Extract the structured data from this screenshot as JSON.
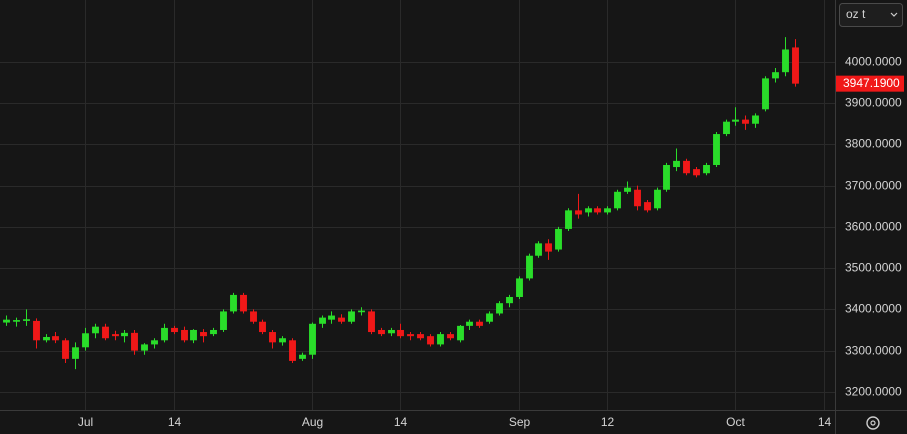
{
  "unit_selector": "oz t",
  "chart_data": {
    "type": "candlestick",
    "up_color": "#2add2a",
    "down_color": "#f01818",
    "grid": true,
    "xlim": [
      -0.63,
      84.1
    ],
    "xticks": [
      {
        "value": 8,
        "label": "Jul"
      },
      {
        "value": 17,
        "label": "14"
      },
      {
        "value": 31,
        "label": "Aug"
      },
      {
        "value": 40,
        "label": "14"
      },
      {
        "value": 52,
        "label": "Sep"
      },
      {
        "value": 61,
        "label": "12"
      },
      {
        "value": 74,
        "label": "Oct"
      },
      {
        "value": 83,
        "label": "14"
      }
    ],
    "ylim": [
      3156,
      4150
    ],
    "yticks": [
      {
        "value": 3200,
        "label": "3200.0000"
      },
      {
        "value": 3300,
        "label": "3300.0000"
      },
      {
        "value": 3400,
        "label": "3400.0000"
      },
      {
        "value": 3500,
        "label": "3500.0000"
      },
      {
        "value": 3600,
        "label": "3600.0000"
      },
      {
        "value": 3700,
        "label": "3700.0000"
      },
      {
        "value": 3800,
        "label": "3800.0000"
      },
      {
        "value": 3900,
        "label": "3900.0000"
      },
      {
        "value": 4000,
        "label": "4000.0000"
      }
    ],
    "last_price": {
      "value": 3947.19,
      "label": "3947.1900"
    },
    "open": [
      3368,
      3370,
      3372,
      3372,
      3325,
      3335,
      3325,
      3280,
      3308,
      3342,
      3358,
      3340,
      3335,
      3343,
      3300,
      3315,
      3325,
      3355,
      3350,
      3325,
      3345,
      3340,
      3350,
      3395,
      3435,
      3395,
      3370,
      3345,
      3320,
      3325,
      3280,
      3290,
      3365,
      3375,
      3380,
      3370,
      3393,
      3395,
      3350,
      3342,
      3350,
      3340,
      3340,
      3335,
      3315,
      3340,
      3325,
      3360,
      3370,
      3370,
      3390,
      3415,
      3430,
      3475,
      3530,
      3560,
      3545,
      3595,
      3640,
      3635,
      3645,
      3635,
      3645,
      3685,
      3690,
      3660,
      3645,
      3690,
      3745,
      3760,
      3740,
      3730,
      3750,
      3825,
      3855,
      3860,
      3850,
      3885,
      3960,
      3975,
      4035
    ],
    "high": [
      3385,
      3380,
      3400,
      3378,
      3340,
      3345,
      3330,
      3320,
      3355,
      3365,
      3365,
      3348,
      3350,
      3350,
      3318,
      3330,
      3365,
      3360,
      3358,
      3352,
      3352,
      3355,
      3400,
      3440,
      3440,
      3400,
      3375,
      3350,
      3335,
      3330,
      3295,
      3368,
      3385,
      3395,
      3388,
      3400,
      3405,
      3400,
      3355,
      3355,
      3365,
      3345,
      3345,
      3340,
      3345,
      3345,
      3362,
      3375,
      3375,
      3395,
      3420,
      3435,
      3480,
      3535,
      3565,
      3570,
      3600,
      3645,
      3680,
      3650,
      3650,
      3650,
      3690,
      3710,
      3700,
      3665,
      3695,
      3755,
      3790,
      3765,
      3745,
      3755,
      3830,
      3860,
      3890,
      3870,
      3875,
      3965,
      3985,
      4060,
      4055
    ],
    "low": [
      3360,
      3358,
      3360,
      3305,
      3320,
      3318,
      3270,
      3255,
      3300,
      3330,
      3325,
      3325,
      3320,
      3290,
      3290,
      3305,
      3320,
      3340,
      3320,
      3318,
      3320,
      3335,
      3345,
      3390,
      3390,
      3365,
      3340,
      3305,
      3312,
      3270,
      3275,
      3280,
      3355,
      3365,
      3365,
      3365,
      3385,
      3340,
      3335,
      3335,
      3330,
      3325,
      3325,
      3310,
      3310,
      3325,
      3320,
      3350,
      3355,
      3365,
      3385,
      3405,
      3425,
      3470,
      3525,
      3520,
      3540,
      3590,
      3620,
      3625,
      3630,
      3630,
      3640,
      3680,
      3640,
      3635,
      3640,
      3685,
      3735,
      3725,
      3720,
      3725,
      3745,
      3820,
      3845,
      3835,
      3840,
      3880,
      3950,
      3965,
      3940
    ],
    "close": [
      3375,
      3374,
      3376,
      3325,
      3333,
      3325,
      3280,
      3308,
      3342,
      3358,
      3330,
      3335,
      3343,
      3300,
      3315,
      3325,
      3355,
      3345,
      3325,
      3350,
      3335,
      3350,
      3395,
      3435,
      3395,
      3370,
      3345,
      3320,
      3330,
      3275,
      3290,
      3365,
      3380,
      3385,
      3370,
      3395,
      3397,
      3345,
      3340,
      3350,
      3335,
      3335,
      3330,
      3315,
      3340,
      3330,
      3360,
      3370,
      3360,
      3390,
      3415,
      3430,
      3475,
      3530,
      3560,
      3540,
      3595,
      3640,
      3630,
      3645,
      3635,
      3645,
      3685,
      3695,
      3650,
      3640,
      3690,
      3750,
      3760,
      3730,
      3725,
      3750,
      3825,
      3855,
      3860,
      3850,
      3870,
      3960,
      3975,
      4030,
      3947.19
    ]
  }
}
